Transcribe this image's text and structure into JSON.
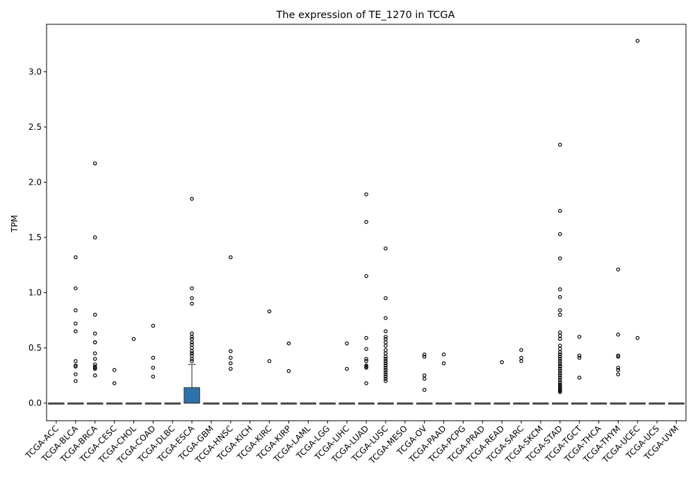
{
  "chart_data": {
    "type": "box",
    "title": "The expression of TE_1270 in TCGA",
    "xlabel": "",
    "ylabel": "TPM",
    "ylim": [
      -0.16,
      3.43
    ],
    "yticks": [
      0.0,
      0.5,
      1.0,
      1.5,
      2.0,
      2.5,
      3.0
    ],
    "ytick_labels": [
      "0.0",
      "0.5",
      "1.0",
      "1.5",
      "2.0",
      "2.5",
      "3.0"
    ],
    "box_color": "#2e72ab",
    "categories": [
      "TCGA-ACC",
      "TCGA-BLCA",
      "TCGA-BRCA",
      "TCGA-CESC",
      "TCGA-CHOL",
      "TCGA-COAD",
      "TCGA-DLBC",
      "TCGA-ESCA",
      "TCGA-GBM",
      "TCGA-HNSC",
      "TCGA-KICH",
      "TCGA-KIRC",
      "TCGA-KIRP",
      "TCGA-LAML",
      "TCGA-LGG",
      "TCGA-LIHC",
      "TCGA-LUAD",
      "TCGA-LUSC",
      "TCGA-MESO",
      "TCGA-OV",
      "TCGA-PAAD",
      "TCGA-PCPG",
      "TCGA-PRAD",
      "TCGA-READ",
      "TCGA-SARC",
      "TCGA-SKCM",
      "TCGA-STAD",
      "TCGA-TGCT",
      "TCGA-THCA",
      "TCGA-THYM",
      "TCGA-UCEC",
      "TCGA-UCS",
      "TCGA-UVM"
    ],
    "boxes": [
      {
        "q1": 0,
        "median": 0,
        "q3": 0,
        "whisker_low": 0,
        "whisker_high": 0,
        "outliers": []
      },
      {
        "q1": 0,
        "median": 0,
        "q3": 0,
        "whisker_low": 0,
        "whisker_high": 0,
        "outliers": [
          1.32,
          1.04,
          0.84,
          0.72,
          0.65,
          0.38,
          0.34,
          0.33,
          0.26,
          0.2
        ]
      },
      {
        "q1": 0,
        "median": 0,
        "q3": 0,
        "whisker_low": 0,
        "whisker_high": 0,
        "outliers": [
          2.17,
          1.5,
          0.8,
          0.63,
          0.55,
          0.55,
          0.45,
          0.4,
          0.35,
          0.33,
          0.32,
          0.31,
          0.25
        ]
      },
      {
        "q1": 0,
        "median": 0,
        "q3": 0,
        "whisker_low": 0,
        "whisker_high": 0,
        "outliers": [
          0.3,
          0.18
        ]
      },
      {
        "q1": 0,
        "median": 0,
        "q3": 0,
        "whisker_low": 0,
        "whisker_high": 0,
        "outliers": [
          0.58
        ]
      },
      {
        "q1": 0,
        "median": 0,
        "q3": 0,
        "whisker_low": 0,
        "whisker_high": 0,
        "outliers": [
          0.7,
          0.41,
          0.32,
          0.24
        ]
      },
      {
        "q1": 0,
        "median": 0,
        "q3": 0,
        "whisker_low": 0,
        "whisker_high": 0,
        "outliers": []
      },
      {
        "q1": 0,
        "median": 0,
        "q3": 0.14,
        "whisker_low": 0,
        "whisker_high": 0.35,
        "outliers": [
          1.85,
          1.04,
          0.95,
          0.9,
          0.63,
          0.6,
          0.58,
          0.55,
          0.53,
          0.5,
          0.47,
          0.45,
          0.43,
          0.4,
          0.38
        ]
      },
      {
        "q1": 0,
        "median": 0,
        "q3": 0,
        "whisker_low": 0,
        "whisker_high": 0,
        "outliers": []
      },
      {
        "q1": 0,
        "median": 0,
        "q3": 0,
        "whisker_low": 0,
        "whisker_high": 0,
        "outliers": [
          1.32,
          0.47,
          0.41,
          0.36,
          0.31
        ]
      },
      {
        "q1": 0,
        "median": 0,
        "q3": 0,
        "whisker_low": 0,
        "whisker_high": 0,
        "outliers": []
      },
      {
        "q1": 0,
        "median": 0,
        "q3": 0,
        "whisker_low": 0,
        "whisker_high": 0,
        "outliers": [
          0.83,
          0.38
        ]
      },
      {
        "q1": 0,
        "median": 0,
        "q3": 0,
        "whisker_low": 0,
        "whisker_high": 0,
        "outliers": [
          0.54,
          0.29
        ]
      },
      {
        "q1": 0,
        "median": 0,
        "q3": 0,
        "whisker_low": 0,
        "whisker_high": 0,
        "outliers": []
      },
      {
        "q1": 0,
        "median": 0,
        "q3": 0,
        "whisker_low": 0,
        "whisker_high": 0,
        "outliers": []
      },
      {
        "q1": 0,
        "median": 0,
        "q3": 0,
        "whisker_low": 0,
        "whisker_high": 0,
        "outliers": [
          0.54,
          0.31
        ]
      },
      {
        "q1": 0,
        "median": 0,
        "q3": 0,
        "whisker_low": 0,
        "whisker_high": 0,
        "outliers": [
          1.89,
          1.64,
          1.15,
          0.59,
          0.49,
          0.4,
          0.38,
          0.34,
          0.33,
          0.32,
          0.18
        ]
      },
      {
        "q1": 0,
        "median": 0,
        "q3": 0,
        "whisker_low": 0,
        "whisker_high": 0,
        "outliers": [
          1.4,
          0.95,
          0.77,
          0.65,
          0.6,
          0.58,
          0.55,
          0.52,
          0.48,
          0.45,
          0.42,
          0.4,
          0.38,
          0.36,
          0.34,
          0.32,
          0.3,
          0.28,
          0.26,
          0.24,
          0.22,
          0.2
        ]
      },
      {
        "q1": 0,
        "median": 0,
        "q3": 0,
        "whisker_low": 0,
        "whisker_high": 0,
        "outliers": []
      },
      {
        "q1": 0,
        "median": 0,
        "q3": 0,
        "whisker_low": 0,
        "whisker_high": 0,
        "outliers": [
          0.44,
          0.42,
          0.25,
          0.22,
          0.12
        ]
      },
      {
        "q1": 0,
        "median": 0,
        "q3": 0,
        "whisker_low": 0,
        "whisker_high": 0,
        "outliers": [
          0.44,
          0.36
        ]
      },
      {
        "q1": 0,
        "median": 0,
        "q3": 0,
        "whisker_low": 0,
        "whisker_high": 0,
        "outliers": []
      },
      {
        "q1": 0,
        "median": 0,
        "q3": 0,
        "whisker_low": 0,
        "whisker_high": 0,
        "outliers": []
      },
      {
        "q1": 0,
        "median": 0,
        "q3": 0,
        "whisker_low": 0,
        "whisker_high": 0,
        "outliers": [
          0.37
        ]
      },
      {
        "q1": 0,
        "median": 0,
        "q3": 0,
        "whisker_low": 0,
        "whisker_high": 0,
        "outliers": [
          0.48,
          0.41,
          0.38
        ]
      },
      {
        "q1": 0,
        "median": 0,
        "q3": 0,
        "whisker_low": 0,
        "whisker_high": 0,
        "outliers": []
      },
      {
        "q1": 0,
        "median": 0,
        "q3": 0,
        "whisker_low": 0,
        "whisker_high": 0,
        "outliers": [
          2.34,
          1.74,
          1.53,
          1.31,
          1.03,
          0.96,
          0.84,
          0.8,
          0.64,
          0.61,
          0.58,
          0.52,
          0.49,
          0.46,
          0.44,
          0.42,
          0.4,
          0.38,
          0.36,
          0.34,
          0.33,
          0.31,
          0.29,
          0.27,
          0.25,
          0.23,
          0.21,
          0.19,
          0.17,
          0.16,
          0.15,
          0.13,
          0.12,
          0.11,
          0.1
        ]
      },
      {
        "q1": 0,
        "median": 0,
        "q3": 0,
        "whisker_low": 0,
        "whisker_high": 0,
        "outliers": [
          0.6,
          0.43,
          0.41,
          0.23
        ]
      },
      {
        "q1": 0,
        "median": 0,
        "q3": 0,
        "whisker_low": 0,
        "whisker_high": 0,
        "outliers": []
      },
      {
        "q1": 0,
        "median": 0,
        "q3": 0,
        "whisker_low": 0,
        "whisker_high": 0,
        "outliers": [
          1.21,
          0.62,
          0.43,
          0.42,
          0.32,
          0.3,
          0.26
        ]
      },
      {
        "q1": 0,
        "median": 0,
        "q3": 0,
        "whisker_low": 0,
        "whisker_high": 0,
        "outliers": [
          3.28,
          0.59
        ]
      },
      {
        "q1": 0,
        "median": 0,
        "q3": 0,
        "whisker_low": 0,
        "whisker_high": 0,
        "outliers": []
      },
      {
        "q1": 0,
        "median": 0,
        "q3": 0,
        "whisker_low": 0,
        "whisker_high": 0,
        "outliers": []
      }
    ]
  }
}
